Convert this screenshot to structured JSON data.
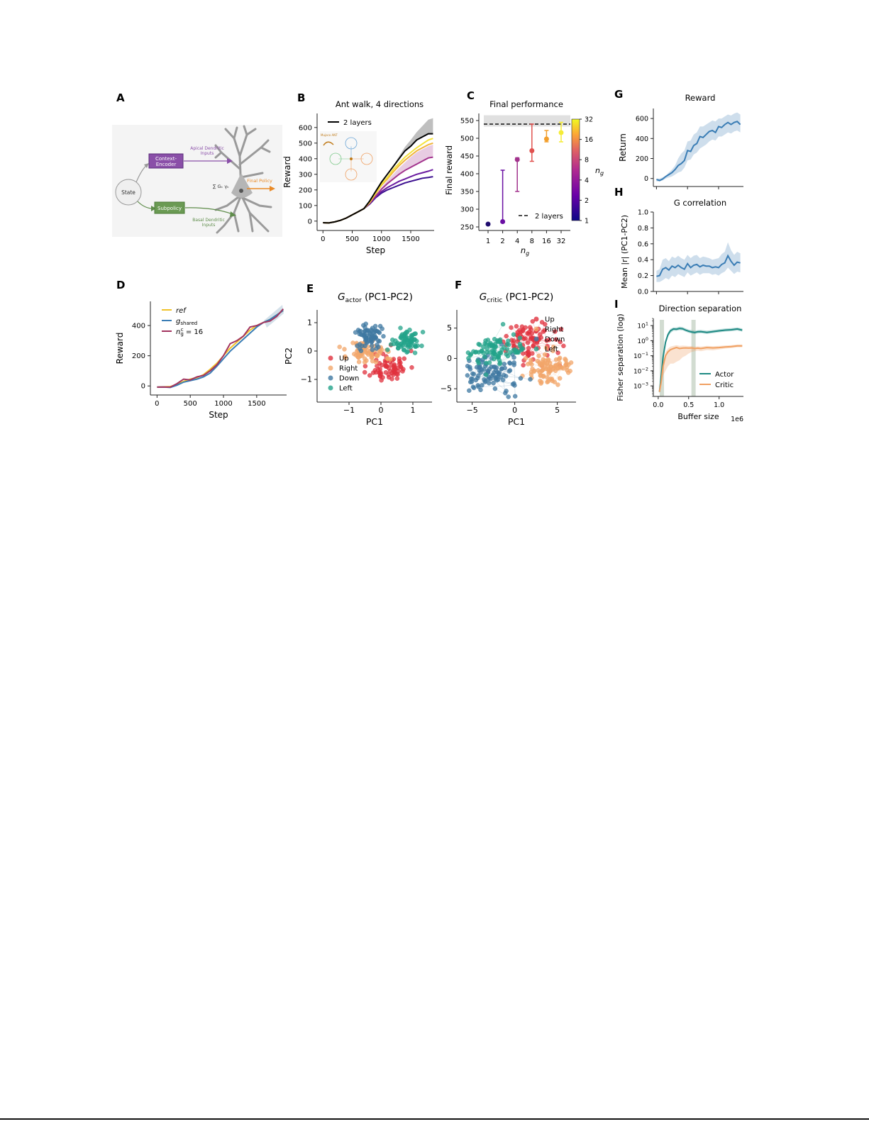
{
  "colors": {
    "black": "#000000",
    "yellow": "#f0c22a",
    "purple1": "#3b0f8f",
    "purple2": "#6a1ba0",
    "magenta": "#a2338d",
    "steel": "#3a7db5",
    "up": "#e0313d",
    "right": "#f2a66a",
    "down": "#3f78a1",
    "left": "#23a38a",
    "actor": "#1f8a84",
    "critic": "#f0a062",
    "orange": "#e98925"
  },
  "panels": {
    "A": {
      "letter": "A",
      "state": "State",
      "context_encoder": "Context-\nEncoder",
      "subpolicy": "Subpolicy",
      "apical": "Apical Dendritic\nInputs",
      "basal": "Basal Dendritic\nInputs",
      "final_policy": "Final Policy",
      "sum": "∑ Gₖ γₖ"
    },
    "B": {
      "letter": "B",
      "title": "Ant walk, 4 directions",
      "legend": "2 layers",
      "inset_label": "Mujoco ANT"
    },
    "C": {
      "letter": "C",
      "title": "Final performance",
      "legend": "2 layers",
      "colorbar_label": "n",
      "colorbar_sub": "g",
      "colorbar_ticks": [
        "1",
        "2",
        "4",
        "8",
        "16",
        "32"
      ]
    },
    "D": {
      "letter": "D"
    },
    "E": {
      "letter": "E",
      "title_prefix": "G",
      "title_sub": "actor",
      "title_suffix": " (PC1-PC2)"
    },
    "F": {
      "letter": "F",
      "title_prefix": "G",
      "title_sub": "critic",
      "title_suffix": " (PC1-PC2)"
    },
    "G": {
      "letter": "G",
      "title": "Reward"
    },
    "H": {
      "letter": "H",
      "title": "G correlation"
    },
    "I": {
      "letter": "I",
      "title": "Direction separation",
      "offset_label": "1e6"
    }
  },
  "chart_data": [
    {
      "id": "B",
      "type": "line",
      "title": "Ant walk, 4 directions",
      "xlabel": "Step",
      "ylabel": "Reward",
      "xlim": [
        -100,
        1900
      ],
      "ylim": [
        -60,
        690
      ],
      "xticks": [
        0,
        500,
        1000,
        1500
      ],
      "yticks": [
        0,
        100,
        200,
        300,
        400,
        500,
        600
      ],
      "x": [
        0,
        100,
        200,
        300,
        400,
        500,
        600,
        700,
        800,
        900,
        1000,
        1100,
        1200,
        1300,
        1400,
        1500,
        1600,
        1700,
        1800,
        1880
      ],
      "series": [
        {
          "name": "2 layers",
          "color": "#000000",
          "values": [
            -10,
            -12,
            -5,
            5,
            20,
            40,
            60,
            80,
            130,
            190,
            250,
            300,
            350,
            400,
            450,
            480,
            520,
            540,
            560,
            560
          ],
          "band": [
            -10,
            -10,
            -5,
            5,
            20,
            40,
            60,
            80,
            130,
            190,
            250,
            300,
            355,
            415,
            475,
            520,
            570,
            610,
            650,
            660
          ]
        },
        {
          "color": "#f5e23a",
          "values": [
            -10,
            -12,
            -5,
            5,
            20,
            40,
            60,
            80,
            125,
            180,
            235,
            280,
            330,
            370,
            410,
            440,
            470,
            495,
            520,
            530
          ]
        },
        {
          "color": "#f0b43a",
          "values": [
            -10,
            -12,
            -5,
            5,
            20,
            40,
            60,
            80,
            120,
            175,
            230,
            270,
            315,
            355,
            390,
            420,
            450,
            470,
            490,
            500
          ]
        },
        {
          "color": "#a2338d",
          "values": [
            -10,
            -12,
            -5,
            5,
            20,
            40,
            60,
            80,
            115,
            160,
            205,
            240,
            270,
            300,
            325,
            345,
            365,
            385,
            405,
            410
          ],
          "band": [
            -10,
            -12,
            -5,
            5,
            20,
            40,
            60,
            80,
            115,
            165,
            215,
            260,
            300,
            340,
            375,
            410,
            440,
            460,
            480,
            490
          ]
        },
        {
          "color": "#6a1ba0",
          "values": [
            -10,
            -12,
            -5,
            5,
            20,
            40,
            60,
            80,
            115,
            155,
            190,
            215,
            235,
            255,
            270,
            285,
            300,
            310,
            320,
            330
          ]
        },
        {
          "color": "#3b0f8f",
          "values": [
            -10,
            -12,
            -5,
            5,
            20,
            40,
            60,
            80,
            110,
            150,
            180,
            200,
            215,
            230,
            245,
            255,
            265,
            275,
            280,
            285
          ]
        }
      ]
    },
    {
      "id": "C",
      "type": "scatter",
      "title": "Final performance",
      "xlabel": "n",
      "xlabel_sub": "g",
      "ylabel": "Final reward",
      "ylim": [
        240,
        570
      ],
      "categories": [
        "1",
        "2",
        "4",
        "8",
        "16",
        "32"
      ],
      "yticks": [
        250,
        300,
        350,
        400,
        450,
        500,
        550
      ],
      "values": [
        258,
        265,
        440,
        465,
        498,
        516
      ],
      "low": [
        258,
        262,
        350,
        435,
        490,
        490
      ],
      "high": [
        260,
        410,
        445,
        540,
        522,
        545
      ],
      "colors": [
        "#1f0c6e",
        "#6a0fa3",
        "#a2338d",
        "#e0514f",
        "#f29e2b",
        "#f5ec36"
      ],
      "reference": {
        "name": "2 layers",
        "value": 540,
        "band": [
          533,
          565
        ]
      }
    },
    {
      "id": "D",
      "type": "line",
      "xlabel": "Step",
      "ylabel": "Reward",
      "xlim": [
        -100,
        1950
      ],
      "ylim": [
        -60,
        560
      ],
      "xticks": [
        0,
        500,
        1000,
        1500
      ],
      "yticks": [
        0,
        200,
        400
      ],
      "x": [
        0,
        100,
        200,
        300,
        400,
        500,
        600,
        700,
        800,
        900,
        1000,
        1100,
        1200,
        1300,
        1400,
        1500,
        1600,
        1700,
        1800,
        1900
      ],
      "series": [
        {
          "name": "ref",
          "color": "#f0c22a",
          "values": [
            -8,
            -6,
            -4,
            10,
            30,
            45,
            55,
            75,
            110,
            150,
            200,
            250,
            290,
            330,
            370,
            400,
            420,
            440,
            470,
            500
          ]
        },
        {
          "name": "g_shared",
          "color": "#3a7db5",
          "values": [
            -8,
            -7,
            -10,
            5,
            25,
            35,
            45,
            60,
            85,
            130,
            180,
            230,
            270,
            310,
            350,
            390,
            420,
            440,
            470,
            500
          ]
        },
        {
          "name": "n_g^c = 16",
          "color": "#a2335f",
          "values": [
            -8,
            -7,
            -8,
            15,
            45,
            40,
            60,
            70,
            100,
            140,
            200,
            280,
            300,
            330,
            390,
            400,
            420,
            430,
            460,
            510
          ]
        }
      ]
    },
    {
      "id": "E",
      "type": "scatter",
      "xlabel": "PC1",
      "ylabel": "PC2",
      "xlim": [
        -2.0,
        1.6
      ],
      "ylim": [
        -1.8,
        1.45
      ],
      "xticks": [
        -1,
        0,
        1
      ],
      "yticks": [
        -1,
        0,
        1
      ],
      "clusters": [
        {
          "name": "Up",
          "color": "#e0313d",
          "center": [
            0.25,
            -0.55
          ],
          "spread": [
            0.3,
            0.28
          ],
          "n": 70
        },
        {
          "name": "Right",
          "color": "#f2a66a",
          "center": [
            -0.45,
            -0.05
          ],
          "spread": [
            0.3,
            0.22
          ],
          "n": 70
        },
        {
          "name": "Down",
          "color": "#3f78a1",
          "center": [
            -0.35,
            0.55
          ],
          "spread": [
            0.25,
            0.22
          ],
          "n": 70
        },
        {
          "name": "Left",
          "color": "#23a38a",
          "center": [
            0.8,
            0.35
          ],
          "spread": [
            0.22,
            0.18
          ],
          "n": 70
        }
      ]
    },
    {
      "id": "F",
      "type": "scatter",
      "xlabel": "PC1",
      "ylabel": "",
      "xlim": [
        -6.8,
        7.2
      ],
      "ylim": [
        -7.2,
        8.0
      ],
      "xticks": [
        -5,
        0,
        5
      ],
      "yticks": [
        -5,
        0,
        5
      ],
      "clusters": [
        {
          "name": "Up",
          "color": "#e0313d",
          "center": [
            1.5,
            3.0
          ],
          "spread": [
            1.6,
            1.6
          ],
          "n": 90
        },
        {
          "name": "Right",
          "color": "#f2a66a",
          "center": [
            3.5,
            -1.5
          ],
          "spread": [
            1.5,
            1.3
          ],
          "n": 90
        },
        {
          "name": "Down",
          "color": "#3f78a1",
          "center": [
            -3.0,
            -2.5
          ],
          "spread": [
            1.7,
            1.5
          ],
          "n": 100
        },
        {
          "name": "Left",
          "color": "#23a38a",
          "center": [
            -2.2,
            1.2
          ],
          "spread": [
            1.7,
            1.3
          ],
          "n": 90
        }
      ]
    },
    {
      "id": "G",
      "type": "line",
      "title": "Reward",
      "ylabel": "Return",
      "xlim": [
        -0.05,
        1.4
      ],
      "ylim": [
        -80,
        700
      ],
      "yticks": [
        0,
        200,
        400,
        600
      ],
      "xticks": [
        0.0,
        0.5,
        1.0
      ],
      "x": [
        0.0,
        0.05,
        0.1,
        0.15,
        0.2,
        0.25,
        0.3,
        0.35,
        0.4,
        0.45,
        0.5,
        0.55,
        0.6,
        0.65,
        0.7,
        0.75,
        0.8,
        0.85,
        0.9,
        0.95,
        1.0,
        1.05,
        1.1,
        1.15,
        1.2,
        1.25,
        1.3,
        1.35
      ],
      "series": [
        {
          "color": "#3a7db5",
          "values": [
            -10,
            -20,
            -5,
            20,
            40,
            60,
            90,
            130,
            150,
            180,
            280,
            270,
            330,
            350,
            420,
            410,
            440,
            470,
            480,
            460,
            520,
            510,
            540,
            560,
            540,
            560,
            570,
            540
          ],
          "band_low": [
            -30,
            -30,
            -20,
            0,
            10,
            20,
            40,
            60,
            70,
            110,
            180,
            190,
            240,
            260,
            300,
            320,
            340,
            370,
            390,
            380,
            420,
            420,
            440,
            460,
            450,
            470,
            480,
            460
          ],
          "band_high": [
            0,
            0,
            10,
            30,
            60,
            90,
            130,
            200,
            250,
            280,
            370,
            380,
            440,
            460,
            520,
            520,
            540,
            560,
            580,
            570,
            600,
            600,
            620,
            640,
            630,
            650,
            660,
            640
          ]
        }
      ]
    },
    {
      "id": "H",
      "type": "line",
      "title": "G correlation",
      "ylabel": "Mean |r| (PC1-PC2)",
      "xlim": [
        -0.05,
        1.4
      ],
      "ylim": [
        0,
        1.0
      ],
      "yticks": [
        0.0,
        0.2,
        0.4,
        0.6,
        0.8,
        1.0
      ],
      "x": [
        0.0,
        0.05,
        0.1,
        0.15,
        0.2,
        0.25,
        0.3,
        0.35,
        0.4,
        0.45,
        0.5,
        0.55,
        0.6,
        0.65,
        0.7,
        0.75,
        0.8,
        0.85,
        0.9,
        0.95,
        1.0,
        1.05,
        1.1,
        1.15,
        1.2,
        1.25,
        1.3,
        1.35
      ],
      "series": [
        {
          "color": "#3a7db5",
          "values": [
            0.19,
            0.2,
            0.28,
            0.3,
            0.27,
            0.32,
            0.3,
            0.33,
            0.3,
            0.28,
            0.35,
            0.3,
            0.33,
            0.34,
            0.31,
            0.33,
            0.32,
            0.32,
            0.3,
            0.31,
            0.3,
            0.34,
            0.36,
            0.45,
            0.38,
            0.33,
            0.37,
            0.36
          ],
          "band_low": [
            0.12,
            0.12,
            0.14,
            0.17,
            0.15,
            0.2,
            0.18,
            0.22,
            0.2,
            0.18,
            0.24,
            0.2,
            0.22,
            0.24,
            0.21,
            0.23,
            0.23,
            0.23,
            0.21,
            0.22,
            0.2,
            0.23,
            0.25,
            0.3,
            0.26,
            0.22,
            0.25,
            0.24
          ],
          "band_high": [
            0.26,
            0.28,
            0.4,
            0.42,
            0.38,
            0.44,
            0.42,
            0.45,
            0.42,
            0.4,
            0.46,
            0.42,
            0.45,
            0.46,
            0.42,
            0.44,
            0.43,
            0.42,
            0.4,
            0.41,
            0.42,
            0.47,
            0.5,
            0.62,
            0.52,
            0.46,
            0.5,
            0.48
          ]
        }
      ]
    },
    {
      "id": "I",
      "type": "line",
      "title": "Direction separation",
      "xlabel": "Buffer size",
      "ylabel": "Fisher separation (log)",
      "yscale": "log",
      "xlim": [
        -0.08,
        1.4
      ],
      "ylim": [
        0.0002,
        30
      ],
      "xticks": [
        0.0,
        0.5,
        1.0
      ],
      "yticks": [
        0.001,
        0.01,
        0.1,
        1,
        10
      ],
      "x": [
        0.02,
        0.05,
        0.08,
        0.12,
        0.16,
        0.2,
        0.25,
        0.3,
        0.35,
        0.4,
        0.45,
        0.5,
        0.55,
        0.6,
        0.65,
        0.7,
        0.8,
        0.9,
        1.0,
        1.1,
        1.2,
        1.3,
        1.38
      ],
      "series": [
        {
          "name": "Actor",
          "color": "#1f8a84",
          "values": [
            0.0004,
            0.005,
            0.08,
            0.8,
            2.5,
            4.5,
            6.0,
            5.8,
            6.5,
            6.2,
            5.0,
            4.2,
            3.8,
            3.5,
            3.9,
            4.0,
            3.5,
            4.0,
            4.5,
            5.0,
            5.3,
            6.0,
            5.0
          ],
          "band_low": [
            0.0003,
            0.003,
            0.05,
            0.5,
            1.8,
            3.2,
            4.5,
            4.5,
            5.0,
            4.8,
            4.0,
            3.3,
            3.0,
            2.8,
            3.0,
            3.2,
            2.8,
            3.2,
            3.6,
            4.0,
            4.2,
            4.7,
            4.0
          ],
          "band_high": [
            0.0006,
            0.008,
            0.12,
            1.2,
            3.5,
            6.0,
            7.5,
            7.5,
            8.5,
            8.0,
            6.5,
            5.5,
            5.0,
            4.5,
            5.0,
            5.2,
            4.6,
            5.2,
            5.8,
            6.4,
            6.8,
            7.6,
            6.4
          ]
        },
        {
          "name": "Critic",
          "color": "#f0a062",
          "values": [
            0.0004,
            0.002,
            0.02,
            0.1,
            0.18,
            0.25,
            0.3,
            0.35,
            0.3,
            0.32,
            0.33,
            0.32,
            0.33,
            0.3,
            0.32,
            0.3,
            0.35,
            0.33,
            0.35,
            0.38,
            0.4,
            0.45,
            0.45
          ],
          "band_low": [
            0.0003,
            0.001,
            0.005,
            0.01,
            0.02,
            0.03,
            0.03,
            0.04,
            0.05,
            0.08,
            0.1,
            0.14,
            0.18,
            0.2,
            0.22,
            0.2,
            0.24,
            0.23,
            0.26,
            0.3,
            0.32,
            0.36,
            0.36
          ],
          "band_high": [
            0.0006,
            0.004,
            0.04,
            0.18,
            0.3,
            0.4,
            0.45,
            0.5,
            0.45,
            0.47,
            0.46,
            0.44,
            0.44,
            0.4,
            0.42,
            0.4,
            0.45,
            0.43,
            0.45,
            0.48,
            0.5,
            0.56,
            0.56
          ]
        }
      ],
      "markers": [
        0.06,
        0.58
      ]
    }
  ]
}
